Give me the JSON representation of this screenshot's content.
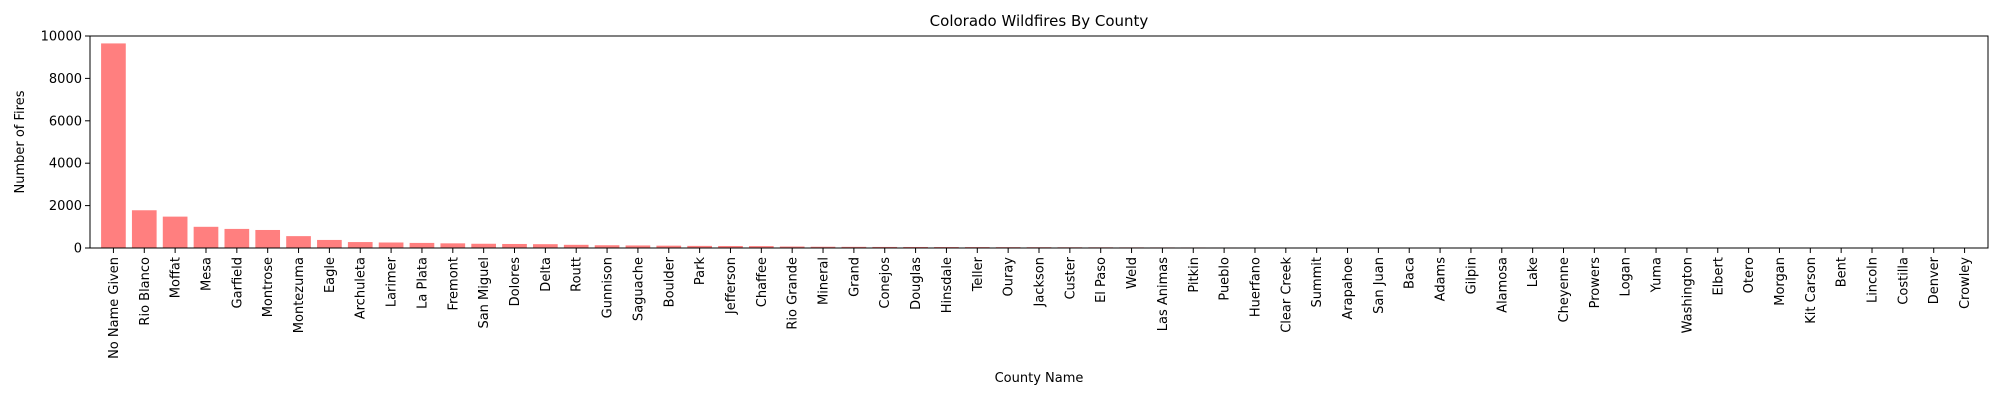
{
  "chart_data": {
    "type": "bar",
    "title": "Colorado Wildfires By County",
    "xlabel": "County Name",
    "ylabel": "Number of Fires",
    "ylim": [
      0,
      10000
    ],
    "yticks": [
      0,
      2000,
      4000,
      6000,
      8000,
      10000
    ],
    "grid": false,
    "bar_color": "#ff7f7f",
    "categories": [
      "No Name Given",
      "Rio Blanco",
      "Moffat",
      "Mesa",
      "Garfield",
      "Montrose",
      "Montezuma",
      "Eagle",
      "Archuleta",
      "Larimer",
      "La Plata",
      "Fremont",
      "San Miguel",
      "Dolores",
      "Delta",
      "Routt",
      "Gunnison",
      "Saguache",
      "Boulder",
      "Park",
      "Jefferson",
      "Chaffee",
      "Rio Grande",
      "Mineral",
      "Grand",
      "Conejos",
      "Douglas",
      "Hinsdale",
      "Teller",
      "Ouray",
      "Jackson",
      "Custer",
      "El Paso",
      "Weld",
      "Las Animas",
      "Pitkin",
      "Pueblo",
      "Huerfano",
      "Clear Creek",
      "Summit",
      "Arapahoe",
      "San Juan",
      "Baca",
      "Adams",
      "Gilpin",
      "Alamosa",
      "Lake",
      "Cheyenne",
      "Prowers",
      "Logan",
      "Yuma",
      "Washington",
      "Elbert",
      "Otero",
      "Morgan",
      "Kit Carson",
      "Bent",
      "Lincoln",
      "Costilla",
      "Denver",
      "Crowley"
    ],
    "values": [
      9650,
      1780,
      1480,
      1000,
      900,
      850,
      560,
      380,
      280,
      260,
      240,
      220,
      200,
      190,
      180,
      150,
      130,
      120,
      110,
      100,
      95,
      90,
      70,
      60,
      55,
      50,
      48,
      45,
      43,
      40,
      38,
      35,
      33,
      30,
      28,
      26,
      24,
      22,
      20,
      18,
      12,
      10,
      8,
      6,
      5,
      4,
      3,
      3,
      2,
      2,
      2,
      1,
      1,
      1,
      1,
      1,
      1,
      1,
      1,
      1,
      1
    ]
  }
}
